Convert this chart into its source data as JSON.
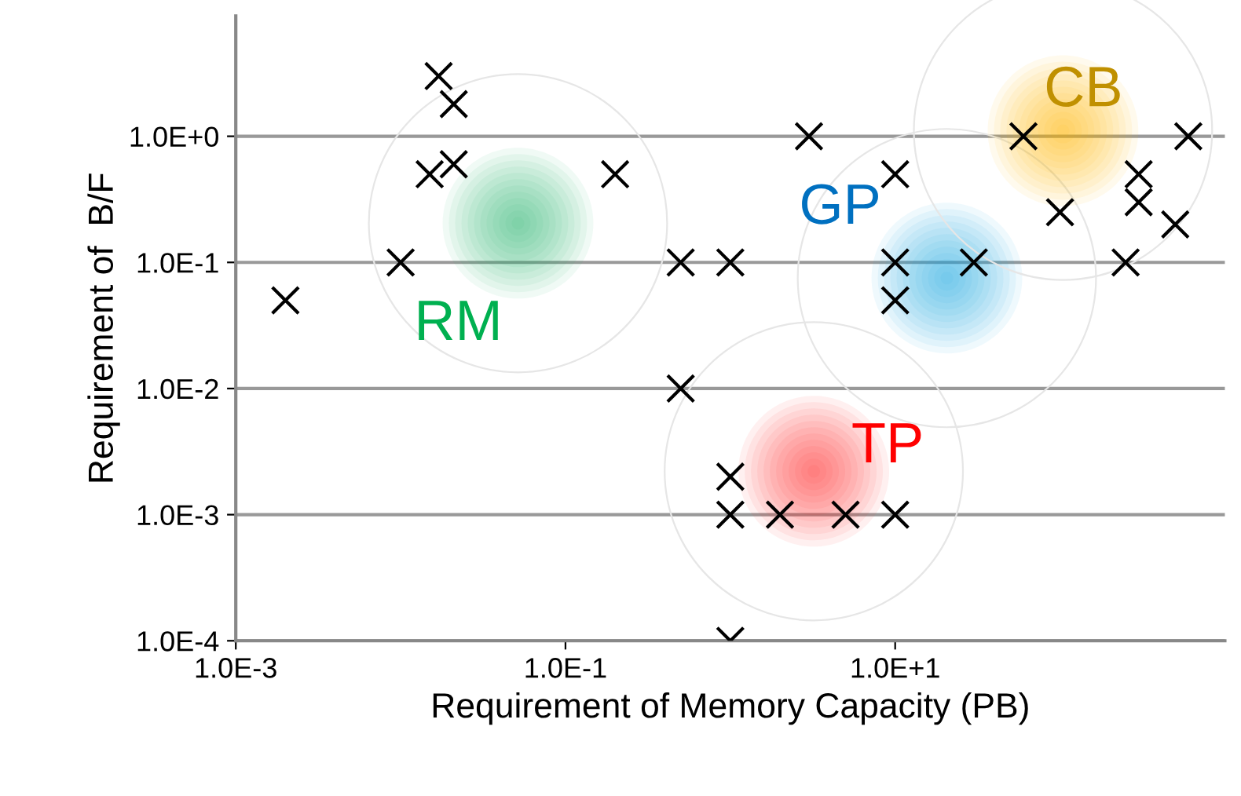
{
  "chart_data": {
    "type": "scatter",
    "xlabel": "Requirement of Memory Capacity (PB)",
    "ylabel": "Requirement of  B/F",
    "log": "xy",
    "grid": "y",
    "marker": "cross",
    "xlim": [
      0.001,
      1000
    ],
    "xticks": [
      {
        "value": 0.001,
        "label": "1.0E-3"
      },
      {
        "value": 0.1,
        "label": "1.0E-1"
      },
      {
        "value": 10,
        "label": "1.0E+1"
      }
    ],
    "ylim": [
      0.0001,
      9
    ],
    "yticks": [
      {
        "value": 0.0001,
        "label": "1.0E-4"
      },
      {
        "value": 0.001,
        "label": "1.0E-3"
      },
      {
        "value": 0.01,
        "label": "1.0E-2"
      },
      {
        "value": 0.1,
        "label": "1.0E-1"
      },
      {
        "value": 1,
        "label": "1.0E+0"
      }
    ],
    "series": [
      {
        "color": "#000000",
        "x": [
          0.002,
          0.01,
          0.017,
          0.021,
          0.015,
          0.021,
          0.2,
          0.5,
          1,
          0.5,
          1,
          1,
          2,
          5,
          10,
          1,
          3,
          10,
          10,
          10,
          30,
          60,
          100,
          250,
          300,
          300,
          500,
          600
        ],
        "values": [
          0.05,
          0.1,
          3,
          1.8,
          0.5,
          0.6,
          0.5,
          0.1,
          0.1,
          0.01,
          0.002,
          0.001,
          0.001,
          0.001,
          0.001,
          0.0001,
          1,
          0.5,
          0.1,
          0.05,
          0.1,
          1,
          0.25,
          0.1,
          0.5,
          0.3,
          0.2,
          1
        ]
      }
    ],
    "annotations": [
      "RM",
      "GP",
      "TP",
      "CB"
    ]
  }
}
